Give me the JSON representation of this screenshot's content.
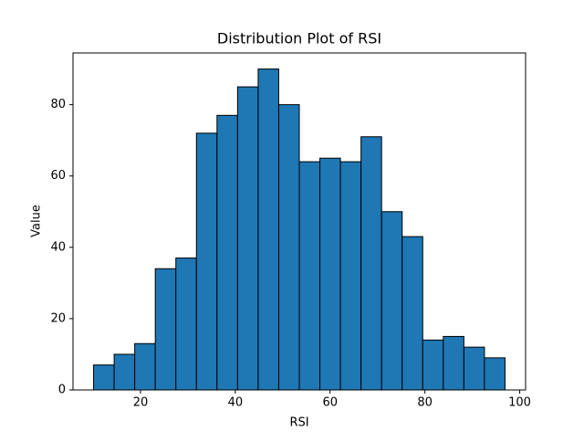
{
  "chart_data": {
    "type": "histogram",
    "title": "Distribution Plot of RSI",
    "x_label": "RSI",
    "y_label": "Value",
    "bins": [
      10.1,
      14.44,
      18.78,
      23.12,
      27.46,
      31.8,
      36.14,
      40.48,
      44.82,
      49.16,
      53.5,
      57.84,
      62.18,
      66.52,
      70.86,
      75.2,
      79.54,
      83.88,
      88.22,
      92.56,
      96.9
    ],
    "values": [
      7,
      10,
      13,
      34,
      37,
      72,
      77,
      85,
      90,
      80,
      64,
      65,
      64,
      71,
      50,
      43,
      14,
      15,
      12,
      9
    ],
    "color": "#1f77b4",
    "edgecolor": "#000000",
    "xlim": [
      5.76,
      101.24
    ],
    "xticks": [
      20,
      40,
      60,
      80,
      100
    ],
    "ylim": [
      0,
      94.5
    ],
    "yticks": [
      0,
      20,
      40,
      60,
      80
    ],
    "grid": false
  }
}
